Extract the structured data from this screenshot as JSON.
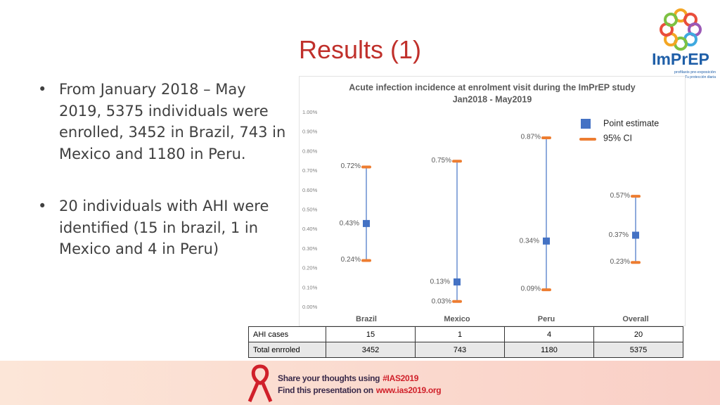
{
  "title": "Results (1)",
  "bullets": [
    "From January 2018 – May 2019, 5375 individuals were enrolled, 3452 in Brazil, 743 in Mexico and 1180 in Peru.",
    "20 individuals with AHI were identified (15 in brazil, 1 in Mexico and 4 in Peru)"
  ],
  "logo": {
    "name": "ImPrEP",
    "tagline": "profilaxis pre-exposición",
    "subtagline": "Tu protección diaria"
  },
  "chart_data": {
    "type": "errorbar",
    "title": [
      "Acute infection incidence at enrolment visit during the ImPrEP study",
      "Jan2018 - May2019"
    ],
    "categories": [
      "Brazil",
      "Mexico",
      "Peru",
      "Overall"
    ],
    "series": [
      {
        "name": "Point estimate",
        "color": "#4472c4",
        "values": [
          0.43,
          0.13,
          0.34,
          0.37
        ],
        "value_labels": [
          "0.43%",
          "0.13%",
          "0.34%",
          "0.37%"
        ]
      },
      {
        "name": "95% CI",
        "color": "#ed7d31",
        "low": [
          0.24,
          0.03,
          0.09,
          0.23
        ],
        "high": [
          0.72,
          0.75,
          0.87,
          0.57
        ],
        "low_labels": [
          "0.24%",
          "0.03%",
          "0.09%",
          "0.23%"
        ],
        "high_labels": [
          "0.72%",
          "0.75%",
          "0.87%",
          "0.57%"
        ]
      }
    ],
    "ylim": [
      0,
      1
    ],
    "yticks": [
      {
        "value": 0,
        "label": "0.00%"
      },
      {
        "value": 0.1,
        "label": "0.10%"
      },
      {
        "value": 0.2,
        "label": "0.20%"
      },
      {
        "value": 0.3,
        "label": "0.30%"
      },
      {
        "value": 0.4,
        "label": "0.40%"
      },
      {
        "value": 0.5,
        "label": "0.50%"
      },
      {
        "value": 0.6,
        "label": "0.60%"
      },
      {
        "value": 0.7,
        "label": "0.70%"
      },
      {
        "value": 0.8,
        "label": "0.80%"
      },
      {
        "value": 0.9,
        "label": "0.90%"
      },
      {
        "value": 1,
        "label": "1.00%"
      }
    ],
    "legend": "top-right"
  },
  "table": {
    "rows": [
      [
        "AHI cases",
        15,
        1,
        4,
        20
      ],
      [
        "Total enrroled",
        3452,
        743,
        1180,
        5375
      ]
    ]
  },
  "footer": {
    "line1": [
      "Share your thoughts using",
      "#IAS2019"
    ],
    "line2": [
      "Find this presentation on",
      "www.ias2019.org"
    ]
  }
}
